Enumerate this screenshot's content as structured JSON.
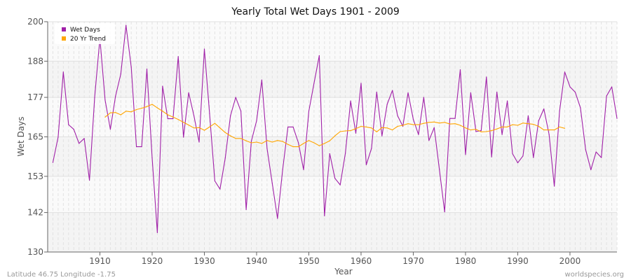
{
  "chart_data": {
    "type": "line",
    "title": "Yearly Total Wet Days 1901 - 2009",
    "xlabel": "Year",
    "ylabel": "Wet Days",
    "xlim": [
      1900,
      2009
    ],
    "ylim": [
      130,
      200
    ],
    "x_ticks": [
      1910,
      1920,
      1930,
      1940,
      1950,
      1960,
      1970,
      1980,
      1990,
      2000
    ],
    "y_ticks": [
      130,
      142,
      153,
      165,
      177,
      188,
      200
    ],
    "grid": true,
    "legend_position": "top-left",
    "series": [
      {
        "name": "Wet Days",
        "color": "#a020a8",
        "x_start": 1901,
        "values": [
          157.2,
          164.9,
          184.7,
          168.7,
          167.3,
          163.0,
          164.5,
          151.8,
          177.0,
          195.0,
          176.2,
          167.3,
          177.4,
          184.1,
          198.9,
          186.2,
          162.0,
          162.0,
          185.6,
          158.6,
          135.9,
          180.4,
          170.5,
          170.5,
          189.4,
          164.9,
          178.4,
          171.4,
          163.4,
          191.7,
          172.1,
          151.6,
          149.1,
          158.6,
          171.4,
          177.0,
          172.8,
          142.9,
          163.7,
          169.9,
          182.3,
          161.5,
          150.9,
          140.2,
          155.1,
          168.0,
          168.0,
          163.2,
          155.0,
          172.8,
          181.3,
          189.7,
          141.0,
          159.9,
          152.4,
          150.4,
          160.0,
          175.9,
          166.1,
          181.3,
          156.5,
          161.5,
          178.6,
          165.3,
          174.9,
          179.1,
          171.4,
          168.2,
          178.4,
          170.3,
          165.7,
          177.0,
          163.9,
          167.8,
          155.1,
          142.2,
          170.6,
          170.6,
          185.4,
          159.6,
          178.4,
          166.6,
          166.9,
          183.2,
          158.9,
          178.6,
          165.7,
          175.9,
          159.9,
          157.1,
          159.2,
          171.4,
          158.7,
          169.9,
          173.5,
          165.7,
          150.0,
          172.8,
          184.7,
          180.2,
          178.6,
          173.8,
          161.1,
          155.0,
          160.4,
          158.7,
          177.4,
          180.2,
          170.6
        ]
      },
      {
        "name": "20 Yr Trend",
        "color": "#ffa500",
        "x_start": 1911,
        "values": [
          171.0,
          172.3,
          172.4,
          171.7,
          172.8,
          172.6,
          173.3,
          173.7,
          174.2,
          174.9,
          173.8,
          172.8,
          171.7,
          171.0,
          170.3,
          169.4,
          168.6,
          167.7,
          167.8,
          167.0,
          168.0,
          169.1,
          167.7,
          166.3,
          165.3,
          164.5,
          164.5,
          163.8,
          163.2,
          163.4,
          163.0,
          163.9,
          163.4,
          163.9,
          163.6,
          162.7,
          162.0,
          162.0,
          163.0,
          163.9,
          163.2,
          162.3,
          163.0,
          163.8,
          165.3,
          166.6,
          166.8,
          166.9,
          167.5,
          168.2,
          168.0,
          167.7,
          166.5,
          167.8,
          167.7,
          167.1,
          168.2,
          168.5,
          169.0,
          168.7,
          168.7,
          169.1,
          169.4,
          169.5,
          169.2,
          169.4,
          168.9,
          169.0,
          168.5,
          167.7,
          167.1,
          167.3,
          166.5,
          166.6,
          166.9,
          167.4,
          168.0,
          168.0,
          168.7,
          168.5,
          169.2,
          169.0,
          168.8,
          168.2,
          167.1,
          167.1,
          167.1,
          168.0,
          167.6
        ]
      }
    ]
  },
  "footer": {
    "location": "Latitude 46.75 Longitude -1.75",
    "source": "worldspecies.org"
  }
}
